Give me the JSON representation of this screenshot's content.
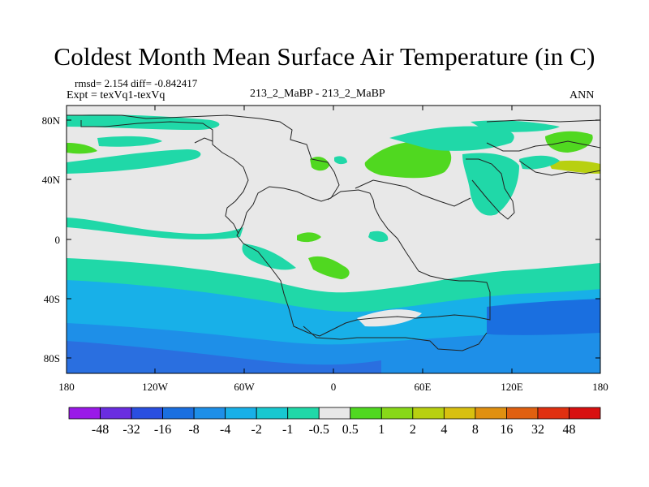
{
  "title": "Coldest Month Mean Surface Air Temperature (in C)",
  "stats": "rmsd= 2.154  diff= -0.842417",
  "experiment": "Expt = texVq1-texVq",
  "center_label": "213_2_MaBP - 213_2_MaBP",
  "period": "ANN",
  "lat_labels": [
    "80N",
    "40N",
    "0",
    "40S",
    "80S"
  ],
  "lon_labels": [
    "180",
    "120W",
    "60W",
    "0",
    "60E",
    "120E",
    "180"
  ],
  "colorbar": {
    "labels": [
      "-48",
      "-32",
      "-16",
      "-8",
      "-4",
      "-2",
      "-1",
      "-0.5",
      "0.5",
      "1",
      "2",
      "4",
      "8",
      "16",
      "32",
      "48"
    ],
    "colors": [
      "#9a19e8",
      "#6a2de0",
      "#2a4fe0",
      "#1a6fe0",
      "#1e8fe8",
      "#18b0e8",
      "#18c8d0",
      "#20d8a8",
      "#e8e8e8",
      "#50d820",
      "#88d818",
      "#b8d010",
      "#d8c010",
      "#e09010",
      "#e06010",
      "#e03010",
      "#d81010"
    ]
  },
  "fields": {
    "background": "#e8e8e8",
    "neutral": "#e8e8e8"
  }
}
